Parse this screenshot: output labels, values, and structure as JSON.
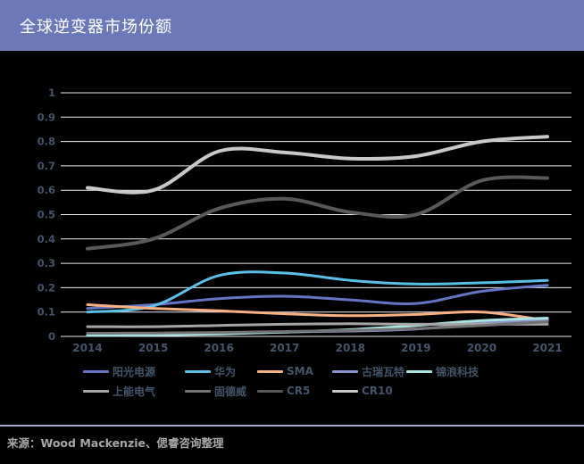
{
  "header": {
    "title": "全球逆变器市场份额"
  },
  "footer": {
    "source": "来源：Wood Mackenzie、偲睿咨询整理"
  },
  "colors": {
    "header_bg": "#6B79B8",
    "chart_bg": "#000000",
    "gridline": "#EDEBF5",
    "axis_text": "#44546A",
    "legend_text": "#44546A",
    "divider": "#A9A9D6",
    "source_text": "#A8A8A8"
  },
  "chart_data": {
    "type": "line",
    "title": "全球逆变器市场份额",
    "x": [
      2014,
      2015,
      2016,
      2017,
      2018,
      2019,
      2020,
      2021
    ],
    "xlabel": "",
    "ylabel": "",
    "ylim": [
      0,
      1
    ],
    "y_ticks": [
      "0",
      "0.1",
      "0.2",
      "0.3",
      "0.4",
      "0.5",
      "0.6",
      "0.7",
      "0.8",
      "0.9",
      "1"
    ],
    "grid": true,
    "line_style": "smooth",
    "legend_position": "bottom",
    "series": [
      {
        "name": "阳光电源",
        "color": "#6674C4",
        "width": 3,
        "values": [
          0.115,
          0.13,
          0.155,
          0.165,
          0.15,
          0.135,
          0.185,
          0.21
        ]
      },
      {
        "name": "华为",
        "color": "#5BC0E8",
        "width": 3,
        "values": [
          0.1,
          0.125,
          0.25,
          0.26,
          0.23,
          0.215,
          0.22,
          0.23
        ]
      },
      {
        "name": "SMA",
        "color": "#F7B183",
        "width": 3,
        "values": [
          0.13,
          0.115,
          0.105,
          0.093,
          0.085,
          0.09,
          0.1,
          0.065
        ]
      },
      {
        "name": "古瑞瓦特",
        "color": "#8A94CF",
        "width": 3,
        "values": [
          0.005,
          0.008,
          0.012,
          0.018,
          0.022,
          0.03,
          0.055,
          0.07
        ]
      },
      {
        "name": "锦浪科技",
        "color": "#A9E4E0",
        "width": 3,
        "values": [
          0.004,
          0.006,
          0.01,
          0.018,
          0.028,
          0.045,
          0.065,
          0.075
        ]
      },
      {
        "name": "上能电气",
        "color": "#A6A6A6",
        "width": 3,
        "values": [
          0.04,
          0.04,
          0.045,
          0.05,
          0.052,
          0.05,
          0.05,
          0.05
        ]
      },
      {
        "name": "固德威",
        "color": "#737373",
        "width": 3,
        "values": [
          0.013,
          0.014,
          0.016,
          0.02,
          0.025,
          0.032,
          0.045,
          0.06
        ]
      },
      {
        "name": "CR5",
        "color": "#595959",
        "width": 4,
        "values": [
          0.36,
          0.4,
          0.525,
          0.565,
          0.51,
          0.5,
          0.64,
          0.65
        ]
      },
      {
        "name": "CR10",
        "color": "#C9C9C9",
        "width": 4,
        "values": [
          0.61,
          0.6,
          0.76,
          0.755,
          0.73,
          0.74,
          0.8,
          0.82
        ]
      }
    ],
    "legend_rows": [
      [
        0,
        1,
        2,
        3,
        4
      ],
      [
        5,
        6,
        7,
        8
      ]
    ]
  }
}
